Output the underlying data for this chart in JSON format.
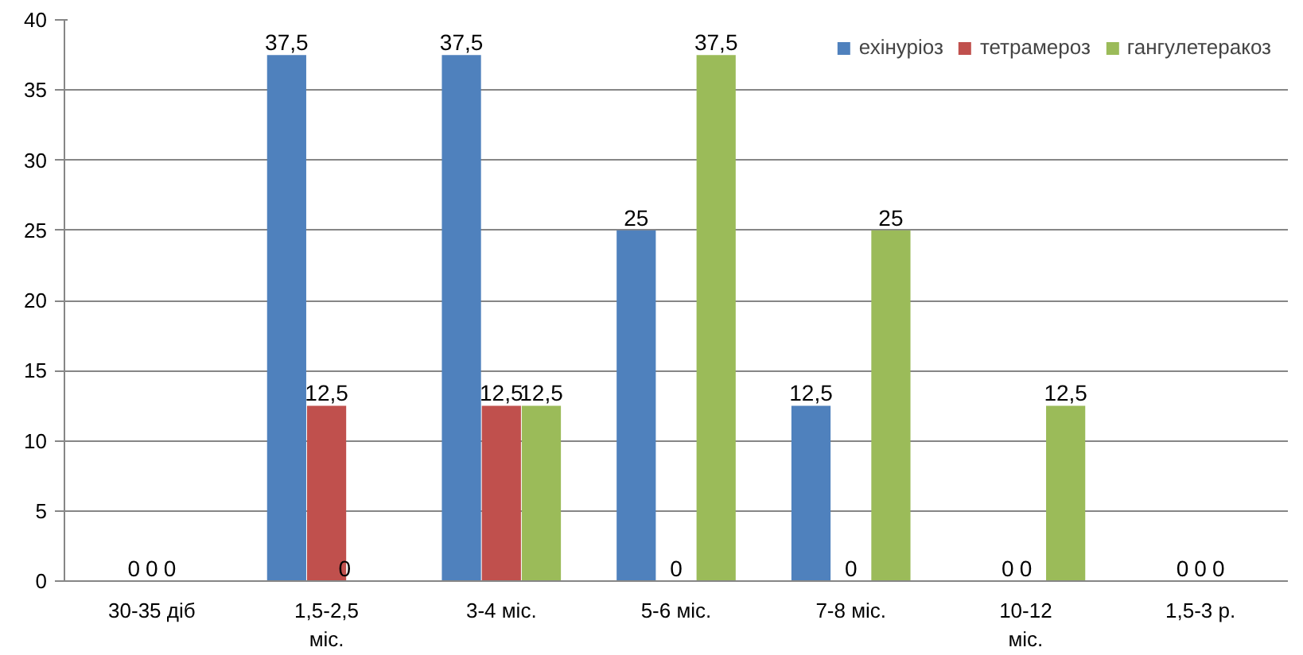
{
  "chart_data": {
    "type": "bar",
    "categories": [
      "30-35 діб",
      "1,5-2,5 міс.",
      "3-4 міс.",
      "5-6 міс.",
      "7-8 міс.",
      "10-12 міс.",
      "1,5-3 р."
    ],
    "series": [
      {
        "name": "ехінуріоз",
        "color": "#4f81bd",
        "values": [
          0,
          37.5,
          37.5,
          25,
          12.5,
          0,
          0
        ],
        "value_labels": [
          "0",
          "37,5",
          "37,5",
          "25",
          "12,5",
          "0",
          "0"
        ]
      },
      {
        "name": "тетрамероз",
        "color": "#c0504d",
        "values": [
          0,
          12.5,
          12.5,
          0,
          0,
          0,
          0
        ],
        "value_labels": [
          "0",
          "12,5",
          "12,5",
          "0",
          "0",
          "0",
          "0"
        ]
      },
      {
        "name": "гангулетеракоз",
        "color": "#9bbb59",
        "values": [
          0,
          0,
          12.5,
          37.5,
          25,
          12.5,
          0
        ],
        "value_labels": [
          "0",
          "0",
          "12,5",
          "37,5",
          "25",
          "12,5",
          "0"
        ]
      }
    ],
    "ylim": [
      0,
      40
    ],
    "yticks": [
      0,
      5,
      10,
      15,
      20,
      25,
      30,
      35,
      40
    ],
    "grid": "y",
    "legend": "top right"
  }
}
